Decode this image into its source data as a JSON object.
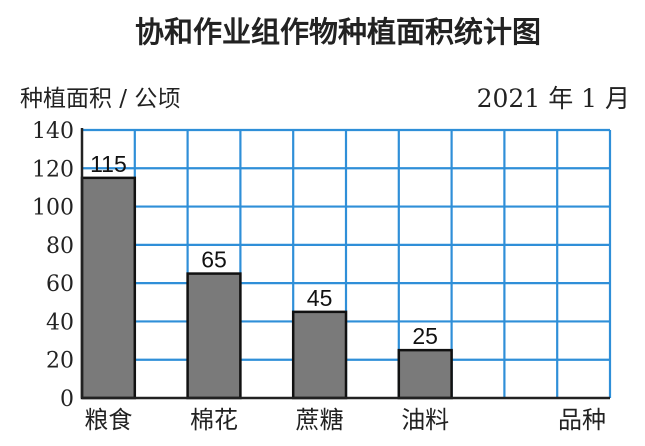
{
  "chart_data": {
    "type": "bar",
    "title": "协和作业组作物种植面积统计图",
    "ylabel": "种植面积 / 公顷",
    "xlabel": "品种",
    "date": "2021 年 1 月",
    "categories": [
      "粮食",
      "棉花",
      "蔗糖",
      "油料",
      ""
    ],
    "values": [
      115,
      65,
      45,
      25,
      null
    ],
    "value_labels": [
      "115",
      "65",
      "45",
      "25",
      ""
    ],
    "ylim": [
      0,
      140
    ],
    "yticks": [
      0,
      20,
      40,
      60,
      80,
      100,
      120,
      140
    ],
    "ytick_labels": [
      "0",
      "20",
      "40",
      "60",
      "80",
      "100",
      "120",
      "140"
    ],
    "grid": true,
    "colors": {
      "bar_fill": "#7a7a7a",
      "bar_stroke": "#111111",
      "grid": "#2f8fd8",
      "axis": "#222222"
    }
  }
}
